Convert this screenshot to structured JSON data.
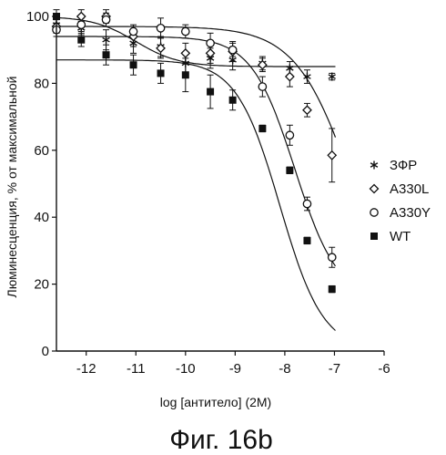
{
  "chart_data": {
    "type": "scatter",
    "title": "",
    "xlabel": "log [антитело] (2M)",
    "ylabel": "Люминесценция, % от максимальной",
    "xlim": [
      -12.6,
      -6
    ],
    "ylim": [
      0,
      100
    ],
    "xticks": [
      -12,
      -11,
      -10,
      -9,
      -8,
      -7,
      -6
    ],
    "yticks": [
      0,
      20,
      40,
      60,
      80,
      100
    ],
    "grid": false,
    "legend_position": "right",
    "series": [
      {
        "name": "ЗФР",
        "marker": "asterisk",
        "x": [
          -12.6,
          -12.1,
          -11.6,
          -11.05,
          -10.5,
          -10.0,
          -9.5,
          -9.05,
          -8.45,
          -7.9,
          -7.55,
          -7.05
        ],
        "y": [
          97.5,
          96.5,
          93,
          92,
          91,
          86,
          87.5,
          87,
          86,
          84.5,
          82,
          82
        ],
        "err": [
          2,
          2,
          3,
          3,
          3,
          3,
          3,
          3,
          2,
          2,
          2,
          1
        ],
        "curve": {
          "bottom": 85,
          "top": 100,
          "logEC50": -11.0,
          "hill": -1
        }
      },
      {
        "name": "A330L",
        "marker": "diamond",
        "x": [
          -12.6,
          -12.1,
          -11.6,
          -11.05,
          -10.5,
          -10.0,
          -9.5,
          -9.05,
          -8.45,
          -7.9,
          -7.55,
          -7.05
        ],
        "y": [
          97,
          100,
          100,
          94,
          90.5,
          89,
          89,
          89.5,
          85.5,
          82,
          72,
          58.5
        ],
        "err": [
          2,
          2,
          2,
          3,
          3,
          3,
          3,
          3,
          2,
          3,
          2,
          8
        ],
        "curve": {
          "bottom": 0,
          "top": 97,
          "logEC50": -6.6,
          "hill": -0.75
        }
      },
      {
        "name": "A330Y",
        "marker": "circle",
        "x": [
          -12.6,
          -12.1,
          -11.6,
          -11.05,
          -10.5,
          -10.0,
          -9.5,
          -9.05,
          -8.45,
          -7.9,
          -7.55,
          -7.05
        ],
        "y": [
          96,
          97.5,
          99,
          95.5,
          96.5,
          95.5,
          92,
          90,
          79,
          64.5,
          44,
          28
        ],
        "err": [
          2,
          2,
          2,
          2,
          3,
          2,
          3,
          2,
          3,
          3,
          2,
          3
        ],
        "curve": {
          "bottom": 15,
          "top": 94,
          "logEC50": -7.8,
          "hill": -1
        }
      },
      {
        "name": "WT",
        "marker": "square",
        "x": [
          -12.6,
          -12.1,
          -11.6,
          -11.05,
          -10.5,
          -10.0,
          -9.5,
          -9.05,
          -8.45,
          -7.9,
          -7.55,
          -7.05
        ],
        "y": [
          100,
          93,
          88.5,
          85.5,
          83,
          82.5,
          77.5,
          75,
          66.5,
          54,
          33,
          18.5
        ],
        "err": [
          2,
          2,
          3,
          3,
          3,
          5,
          5,
          3,
          1,
          1,
          1,
          1
        ],
        "curve": {
          "bottom": 0,
          "top": 87,
          "logEC50": -8.1,
          "hill": -1
        }
      }
    ]
  },
  "caption": "Фиг. 16b"
}
